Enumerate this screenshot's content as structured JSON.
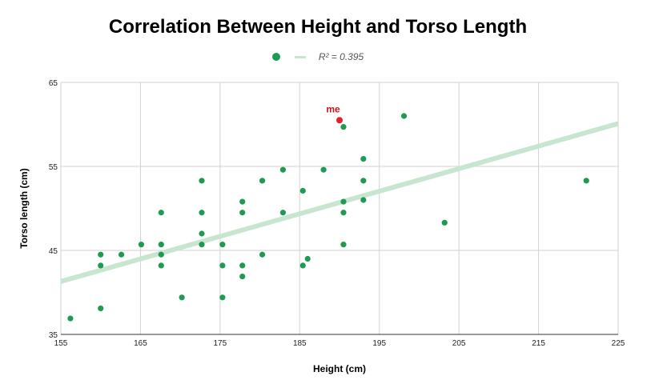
{
  "chart_data": {
    "type": "scatter",
    "title": "Correlation Between Height and Torso Length",
    "xlabel": "Height (cm)",
    "ylabel": "Torso length (cm)",
    "xlim": [
      155,
      225
    ],
    "ylim": [
      35,
      65
    ],
    "xticks": [
      155,
      165,
      175,
      185,
      195,
      205,
      215,
      225
    ],
    "yticks": [
      35,
      45,
      55,
      65
    ],
    "grid": true,
    "legend": {
      "position": "top-center",
      "label": "R² = 0.395"
    },
    "colors": {
      "points": "#1e9a52",
      "trendline": "#c8e6cf",
      "highlight": "#e0222d"
    },
    "trendline": {
      "x": [
        155,
        225
      ],
      "y": [
        41.3,
        60.1
      ]
    },
    "series": [
      {
        "points": [
          [
            156.2,
            36.9
          ],
          [
            160.0,
            44.5
          ],
          [
            160.0,
            43.2
          ],
          [
            160.0,
            38.1
          ],
          [
            162.6,
            44.5
          ],
          [
            165.1,
            45.7
          ],
          [
            167.6,
            49.5
          ],
          [
            167.6,
            45.7
          ],
          [
            167.6,
            44.5
          ],
          [
            167.6,
            43.2
          ],
          [
            170.2,
            39.4
          ],
          [
            172.7,
            53.3
          ],
          [
            172.7,
            49.5
          ],
          [
            172.7,
            47.0
          ],
          [
            172.7,
            45.7
          ],
          [
            175.3,
            45.7
          ],
          [
            175.3,
            43.2
          ],
          [
            175.3,
            39.4
          ],
          [
            177.8,
            50.8
          ],
          [
            177.8,
            49.5
          ],
          [
            177.8,
            43.2
          ],
          [
            177.8,
            41.9
          ],
          [
            180.3,
            53.3
          ],
          [
            180.3,
            44.5
          ],
          [
            182.9,
            54.6
          ],
          [
            182.9,
            49.5
          ],
          [
            185.4,
            52.1
          ],
          [
            185.4,
            43.2
          ],
          [
            186.0,
            44.0
          ],
          [
            188.0,
            54.6
          ],
          [
            190.5,
            59.7
          ],
          [
            190.5,
            50.8
          ],
          [
            190.5,
            49.5
          ],
          [
            190.5,
            45.7
          ],
          [
            193.0,
            55.9
          ],
          [
            193.0,
            53.3
          ],
          [
            193.0,
            51.0
          ],
          [
            198.1,
            61.0
          ],
          [
            203.2,
            48.3
          ],
          [
            221.0,
            53.3
          ]
        ]
      }
    ],
    "highlight": {
      "label": "me",
      "x": 190.0,
      "y": 60.5
    }
  }
}
